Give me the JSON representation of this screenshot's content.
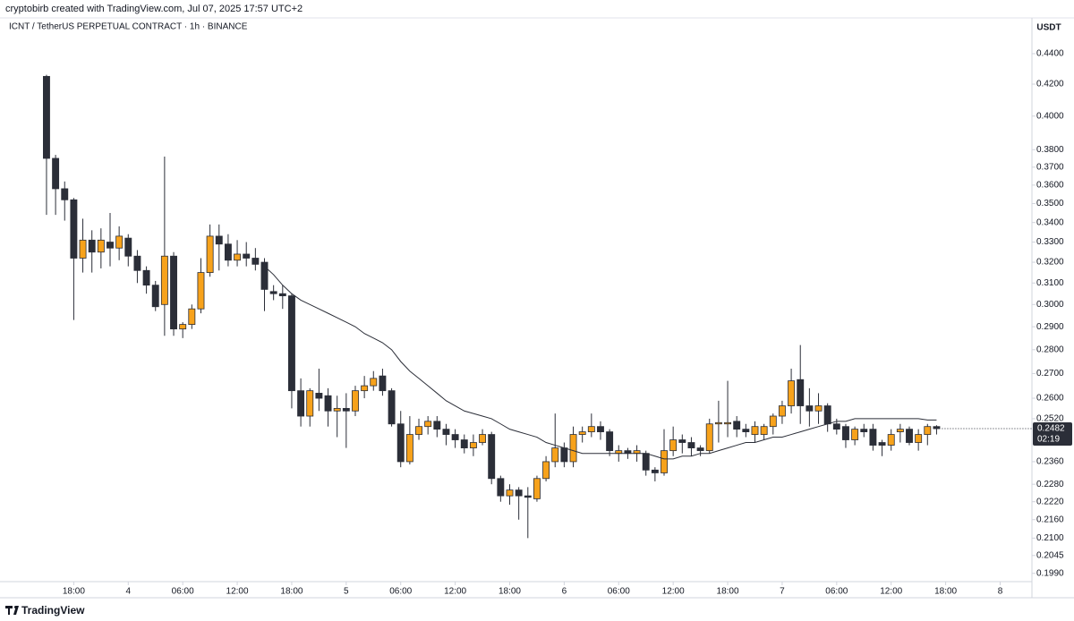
{
  "header": "cryptobirb created with TradingView.com, Jul 07, 2025 17:57 UTC+2",
  "footer": "TradingView",
  "chart_data": {
    "type": "candlestick",
    "title": "ICNT / TetherUS PERPETUAL CONTRACT · 1h · BINANCE",
    "y_unit": "USDT",
    "log_scale": true,
    "up_color": "#f7a21b",
    "down_color": "#2b2e38",
    "ma_color": "#2b2e38",
    "last_price": 0.2482,
    "countdown": "02:19",
    "ylim": [
      0.1965,
      0.4647
    ],
    "xlim": [
      -5.12,
      108.5
    ],
    "yticks": [
      {
        "value": 0.44,
        "label": "0.4400"
      },
      {
        "value": 0.42,
        "label": "0.4200"
      },
      {
        "value": 0.4,
        "label": "0.4000"
      },
      {
        "value": 0.38,
        "label": "0.3800"
      },
      {
        "value": 0.37,
        "label": "0.3700"
      },
      {
        "value": 0.36,
        "label": "0.3600"
      },
      {
        "value": 0.35,
        "label": "0.3500"
      },
      {
        "value": 0.34,
        "label": "0.3400"
      },
      {
        "value": 0.33,
        "label": "0.3300"
      },
      {
        "value": 0.32,
        "label": "0.3200"
      },
      {
        "value": 0.31,
        "label": "0.3100"
      },
      {
        "value": 0.3,
        "label": "0.3000"
      },
      {
        "value": 0.29,
        "label": "0.2900"
      },
      {
        "value": 0.28,
        "label": "0.2800"
      },
      {
        "value": 0.27,
        "label": "0.2700"
      },
      {
        "value": 0.26,
        "label": "0.2600"
      },
      {
        "value": 0.252,
        "label": "0.2520"
      },
      {
        "value": 0.236,
        "label": "0.2360"
      },
      {
        "value": 0.228,
        "label": "0.2280"
      },
      {
        "value": 0.222,
        "label": "0.2220"
      },
      {
        "value": 0.216,
        "label": "0.2160"
      },
      {
        "value": 0.21,
        "label": "0.2100"
      },
      0.2045,
      {
        "value": 0.199,
        "label": "0.1990"
      }
    ],
    "xticks": [
      {
        "value": 3,
        "label": "18:00"
      },
      {
        "value": 9,
        "label": "4"
      },
      {
        "value": 15,
        "label": "06:00"
      },
      {
        "value": 21,
        "label": "12:00"
      },
      {
        "value": 27,
        "label": "18:00"
      },
      {
        "value": 33,
        "label": "5"
      },
      {
        "value": 39,
        "label": "06:00"
      },
      {
        "value": 45,
        "label": "12:00"
      },
      {
        "value": 51,
        "label": "18:00"
      },
      {
        "value": 57,
        "label": "6"
      },
      {
        "value": 63,
        "label": "06:00"
      },
      {
        "value": 69,
        "label": "12:00"
      },
      {
        "value": 75,
        "label": "18:00"
      },
      {
        "value": 81,
        "label": "7"
      },
      {
        "value": 87,
        "label": "06:00"
      },
      {
        "value": 93,
        "label": "12:00"
      },
      {
        "value": 99,
        "label": "18:00"
      },
      {
        "value": 105,
        "label": "8"
      }
    ],
    "open": [
      0.425,
      0.375,
      0.358,
      0.352,
      0.322,
      0.331,
      0.325,
      0.33,
      0.327,
      0.332,
      0.323,
      0.316,
      0.309,
      0.3,
      0.323,
      0.289,
      0.291,
      0.298,
      0.315,
      0.333,
      0.329,
      0.321,
      0.324,
      0.322,
      0.32,
      0.306,
      0.305,
      0.304,
      0.263,
      0.253,
      0.262,
      0.261,
      0.255,
      0.256,
      0.255,
      0.263,
      0.265,
      0.269,
      0.263,
      0.25,
      0.236,
      0.246,
      0.249,
      0.251,
      0.248,
      0.246,
      0.244,
      0.241,
      0.243,
      0.246,
      0.23,
      0.224,
      0.226,
      0.224,
      0.223,
      0.23,
      0.236,
      0.241,
      0.236,
      0.246,
      0.247,
      0.249,
      0.247,
      0.239,
      0.24,
      0.239,
      0.239,
      0.233,
      0.232,
      0.24,
      0.244,
      0.243,
      0.241,
      0.24,
      0.25,
      0.25,
      0.251,
      0.248,
      0.246,
      0.246,
      0.249,
      0.253,
      0.257,
      0.2675,
      0.257,
      0.255,
      0.257,
      0.25,
      0.249,
      0.244,
      0.248,
      0.248,
      0.243,
      0.242,
      0.247,
      0.248,
      0.243,
      0.246,
      0.249
    ],
    "high": [
      0.426,
      0.377,
      0.362,
      0.353,
      0.342,
      0.336,
      0.337,
      0.345,
      0.338,
      0.334,
      0.326,
      0.318,
      0.311,
      0.376,
      0.325,
      0.292,
      0.3,
      0.322,
      0.339,
      0.339,
      0.334,
      0.331,
      0.33,
      0.327,
      0.322,
      0.309,
      0.309,
      0.305,
      0.268,
      0.264,
      0.272,
      0.264,
      0.261,
      0.262,
      0.265,
      0.269,
      0.271,
      0.272,
      0.264,
      0.255,
      0.253,
      0.252,
      0.253,
      0.253,
      0.25,
      0.248,
      0.246,
      0.246,
      0.248,
      0.247,
      0.231,
      0.228,
      0.227,
      0.227,
      0.231,
      0.238,
      0.254,
      0.243,
      0.249,
      0.249,
      0.254,
      0.251,
      0.248,
      0.242,
      0.241,
      0.242,
      0.24,
      0.234,
      0.248,
      0.249,
      0.246,
      0.245,
      0.242,
      0.252,
      0.259,
      0.267,
      0.253,
      0.25,
      0.251,
      0.25,
      0.254,
      0.259,
      0.272,
      0.282,
      0.264,
      0.262,
      0.258,
      0.252,
      0.25,
      0.249,
      0.25,
      0.25,
      0.244,
      0.248,
      0.25,
      0.249,
      0.248,
      0.25,
      0.2495
    ],
    "low": [
      0.344,
      0.344,
      0.341,
      0.293,
      0.315,
      0.315,
      0.317,
      0.318,
      0.321,
      0.318,
      0.31,
      0.305,
      0.297,
      0.286,
      0.286,
      0.285,
      0.289,
      0.296,
      0.313,
      0.316,
      0.318,
      0.318,
      0.318,
      0.316,
      0.297,
      0.302,
      0.298,
      0.256,
      0.249,
      0.249,
      0.255,
      0.249,
      0.245,
      0.241,
      0.253,
      0.26,
      0.263,
      0.261,
      0.249,
      0.234,
      0.235,
      0.244,
      0.246,
      0.245,
      0.242,
      0.241,
      0.239,
      0.238,
      0.242,
      0.228,
      0.222,
      0.221,
      0.216,
      0.21,
      0.222,
      0.229,
      0.234,
      0.234,
      0.234,
      0.243,
      0.245,
      0.244,
      0.238,
      0.236,
      0.237,
      0.236,
      0.231,
      0.229,
      0.231,
      0.238,
      0.239,
      0.238,
      0.238,
      0.239,
      0.243,
      0.245,
      0.245,
      0.245,
      0.243,
      0.244,
      0.246,
      0.25,
      0.254,
      0.25,
      0.249,
      0.25,
      0.247,
      0.246,
      0.241,
      0.242,
      0.245,
      0.24,
      0.238,
      0.24,
      0.243,
      0.242,
      0.24,
      0.242,
      0.246
    ],
    "close": [
      0.375,
      0.358,
      0.352,
      0.322,
      0.331,
      0.325,
      0.331,
      0.327,
      0.333,
      0.323,
      0.316,
      0.309,
      0.299,
      0.323,
      0.289,
      0.291,
      0.298,
      0.315,
      0.333,
      0.329,
      0.321,
      0.324,
      0.322,
      0.319,
      0.307,
      0.305,
      0.304,
      0.263,
      0.253,
      0.263,
      0.26,
      0.255,
      0.256,
      0.255,
      0.263,
      0.265,
      0.268,
      0.263,
      0.25,
      0.236,
      0.246,
      0.249,
      0.251,
      0.248,
      0.246,
      0.244,
      0.241,
      0.243,
      0.246,
      0.23,
      0.224,
      0.226,
      0.224,
      0.2235,
      0.23,
      0.236,
      0.241,
      0.236,
      0.246,
      0.247,
      0.249,
      0.247,
      0.24,
      0.24,
      0.239,
      0.24,
      0.233,
      0.232,
      0.24,
      0.244,
      0.243,
      0.241,
      0.24,
      0.25,
      0.2505,
      0.2505,
      0.248,
      0.247,
      0.249,
      0.249,
      0.253,
      0.257,
      0.267,
      0.257,
      0.255,
      0.257,
      0.25,
      0.248,
      0.244,
      0.248,
      0.247,
      0.242,
      0.242,
      0.246,
      0.248,
      0.243,
      0.246,
      0.249,
      0.2482
    ],
    "ma": [
      null,
      null,
      null,
      null,
      null,
      null,
      null,
      null,
      null,
      null,
      null,
      null,
      null,
      null,
      null,
      null,
      null,
      null,
      null,
      null,
      null,
      null,
      null,
      null,
      0.318,
      0.314,
      0.309,
      0.305,
      0.302,
      0.3,
      0.298,
      0.296,
      0.294,
      0.292,
      0.29,
      0.287,
      0.285,
      0.283,
      0.28,
      0.275,
      0.271,
      0.268,
      0.265,
      0.262,
      0.259,
      0.257,
      0.255,
      0.254,
      0.253,
      0.252,
      0.25,
      0.248,
      0.247,
      0.246,
      0.245,
      0.243,
      0.242,
      0.241,
      0.24,
      0.239,
      0.239,
      0.239,
      0.239,
      0.239,
      0.239,
      0.239,
      0.239,
      0.238,
      0.237,
      0.237,
      0.238,
      0.238,
      0.239,
      0.239,
      0.24,
      0.241,
      0.242,
      0.243,
      0.243,
      0.244,
      0.245,
      0.245,
      0.246,
      0.247,
      0.248,
      0.249,
      0.25,
      0.251,
      0.251,
      0.252,
      0.252,
      0.252,
      0.252,
      0.252,
      0.252,
      0.252,
      0.252,
      0.2515,
      0.2515
    ]
  }
}
